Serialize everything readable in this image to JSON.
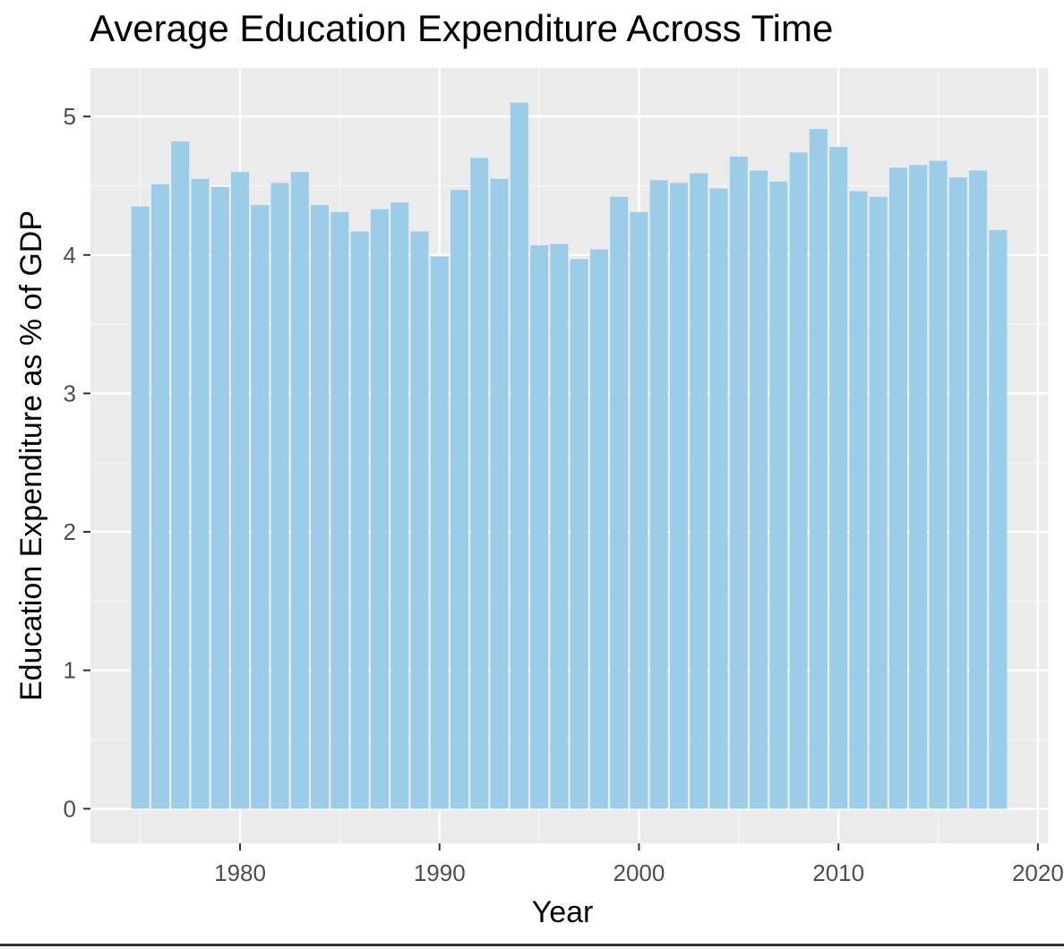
{
  "chart_data": {
    "type": "bar",
    "title": "Average Education Expenditure Across Time",
    "xlabel": "Year",
    "ylabel": "Education Expenditure as % of GDP",
    "xlim": [
      1972.5,
      2020.5
    ],
    "ylim": [
      -0.25,
      5.35
    ],
    "x_ticks": [
      1980,
      1990,
      2000,
      2010,
      2020
    ],
    "y_ticks": [
      0,
      1,
      2,
      3,
      4,
      5
    ],
    "grid": true,
    "legend": "none",
    "colors": {
      "bar": "#9ccde8",
      "panel": "#ebebeb",
      "grid_major": "#ffffff",
      "grid_minor": "#f6f6f6",
      "tick": "#333333"
    },
    "x": [
      1975,
      1976,
      1977,
      1978,
      1979,
      1980,
      1981,
      1982,
      1983,
      1984,
      1985,
      1986,
      1987,
      1988,
      1989,
      1990,
      1991,
      1992,
      1993,
      1994,
      1995,
      1996,
      1997,
      1998,
      1999,
      2000,
      2001,
      2002,
      2003,
      2004,
      2005,
      2006,
      2007,
      2008,
      2009,
      2010,
      2011,
      2012,
      2013,
      2014,
      2015,
      2016,
      2017,
      2018
    ],
    "values": [
      4.35,
      4.51,
      4.82,
      4.55,
      4.49,
      4.6,
      4.36,
      4.52,
      4.6,
      4.36,
      4.31,
      4.17,
      4.33,
      4.38,
      4.17,
      3.99,
      4.47,
      4.7,
      4.55,
      5.1,
      4.07,
      4.08,
      3.97,
      4.04,
      4.42,
      4.31,
      4.54,
      4.52,
      4.59,
      4.48,
      4.71,
      4.61,
      4.53,
      4.74,
      4.91,
      4.78,
      4.46,
      4.42,
      4.63,
      4.65,
      4.68,
      4.56,
      4.61,
      4.18
    ]
  }
}
